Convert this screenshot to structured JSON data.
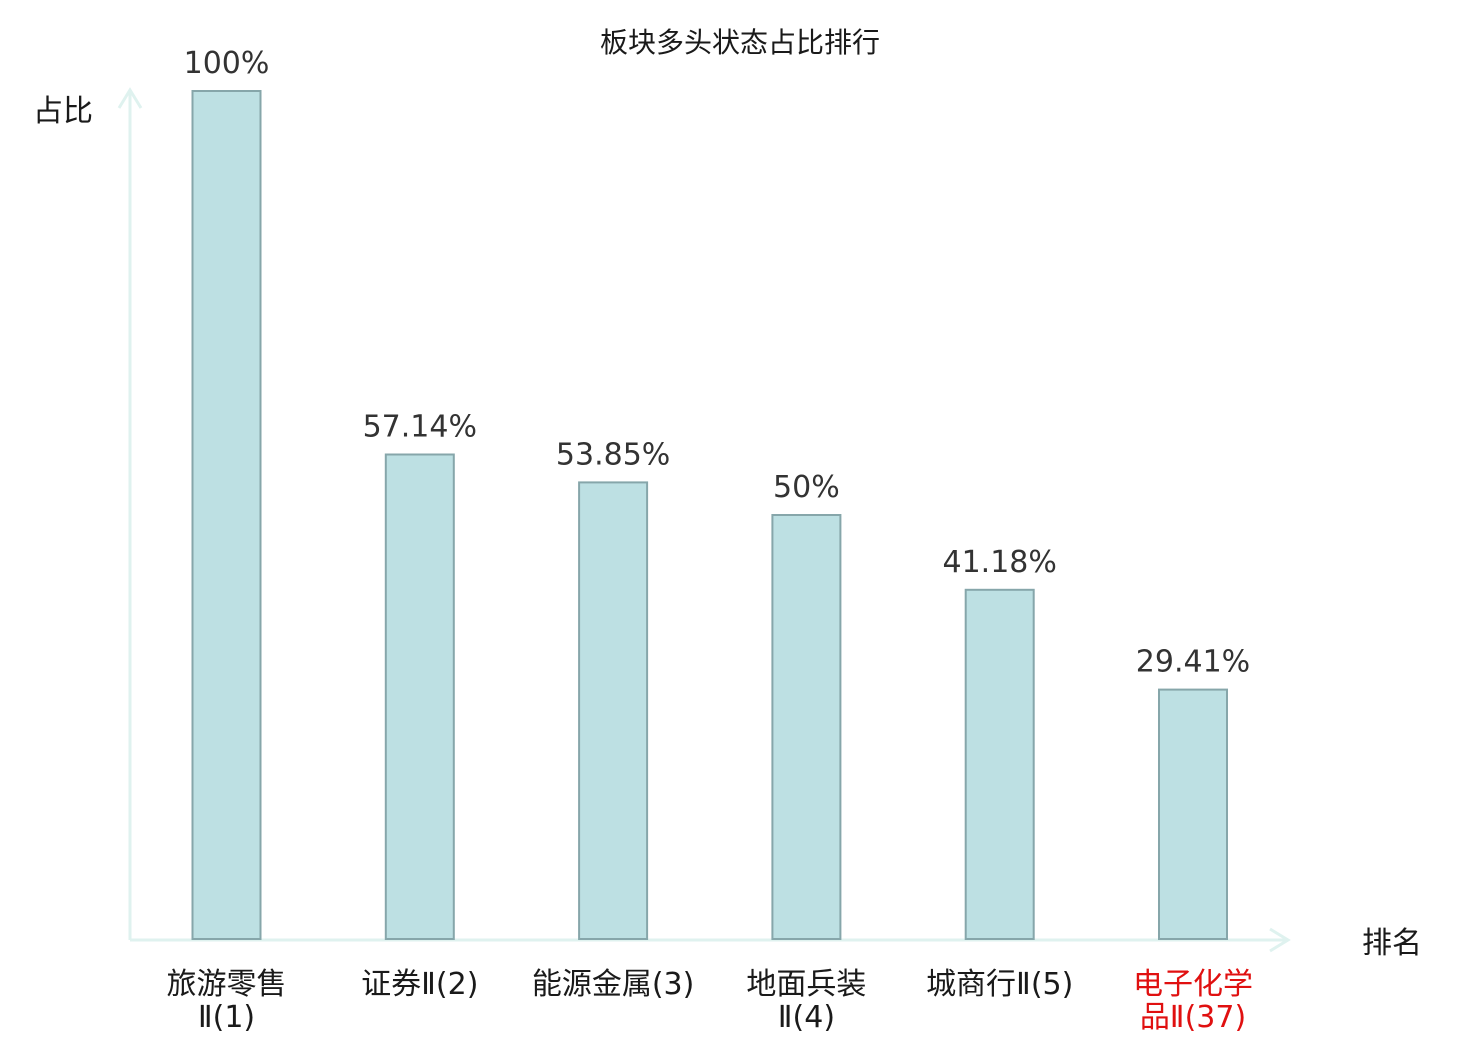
{
  "chart_data": {
    "type": "bar",
    "title": "板块多头状态占比排行",
    "ylabel": "占比",
    "xlabel": "排名",
    "ylim": [
      0,
      100
    ],
    "grid": false,
    "categories": [
      {
        "lines": [
          "旅游零售",
          "Ⅱ(1)"
        ],
        "highlight": false
      },
      {
        "lines": [
          "证券Ⅱ(2)"
        ],
        "highlight": false
      },
      {
        "lines": [
          "能源金属(3)"
        ],
        "highlight": false
      },
      {
        "lines": [
          "地面兵装",
          "Ⅱ(4)"
        ],
        "highlight": false
      },
      {
        "lines": [
          "城商行Ⅱ(5)"
        ],
        "highlight": false
      },
      {
        "lines": [
          "电子化学",
          "品Ⅱ(37)"
        ],
        "highlight": true
      }
    ],
    "values": [
      100,
      57.14,
      53.85,
      50,
      41.18,
      29.41
    ],
    "value_labels": [
      "100%",
      "57.14%",
      "53.85%",
      "50%",
      "41.18%",
      "29.41%"
    ]
  },
  "colors": {
    "bar_fill": "#bde0e3",
    "bar_stroke": "#86a6aa",
    "axis": "#dff2ef",
    "text": "#1a1a1a",
    "value_text": "#333333",
    "highlight_text": "#e01010"
  }
}
